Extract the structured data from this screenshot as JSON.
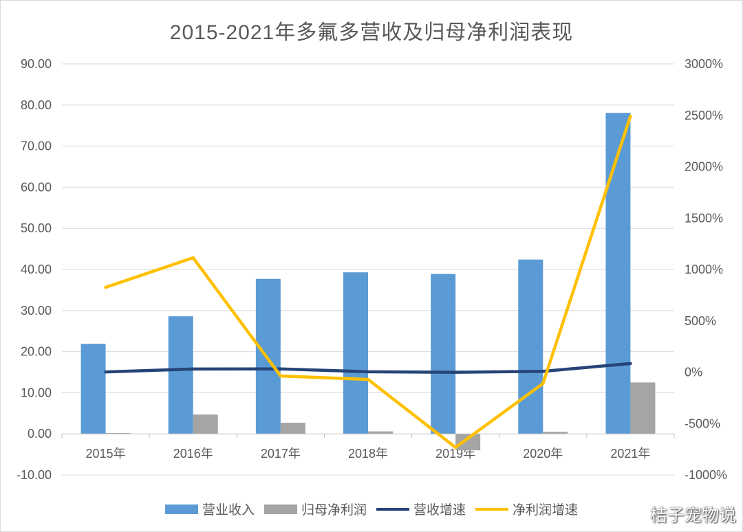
{
  "chart_data": {
    "type": "bar",
    "title": "2015-2021年多氟多营收及归母净利润表现",
    "categories": [
      "2015年",
      "2016年",
      "2017年",
      "2018年",
      "2019年",
      "2020年",
      "2021年"
    ],
    "series": [
      {
        "name": "营业收入",
        "type": "bar",
        "axis": "left",
        "color": "#5B9BD5",
        "values": [
          21.9,
          28.6,
          37.7,
          39.3,
          38.9,
          42.4,
          78.1
        ]
      },
      {
        "name": "归母净利润",
        "type": "bar",
        "axis": "left",
        "color": "#A5A5A5",
        "values": [
          0.2,
          4.7,
          2.7,
          0.6,
          -4.0,
          0.5,
          12.5
        ]
      },
      {
        "name": "营收增速",
        "type": "line",
        "axis": "right",
        "color": "#264478",
        "values": [
          3,
          31,
          32,
          4,
          -1,
          9,
          84
        ]
      },
      {
        "name": "净利润增速",
        "type": "line",
        "axis": "right",
        "color": "#FFC000",
        "values": [
          826,
          1114,
          -37,
          -70,
          -732,
          -110,
          2492
        ]
      }
    ],
    "left_axis": {
      "ylim": [
        -10,
        90
      ],
      "ticks": [
        -10,
        0,
        10,
        20,
        30,
        40,
        50,
        60,
        70,
        80,
        90
      ],
      "tick_labels": [
        "-10.00",
        "0.00",
        "10.00",
        "20.00",
        "30.00",
        "40.00",
        "50.00",
        "60.00",
        "70.00",
        "80.00",
        "90.00"
      ],
      "negative_tick_color": "#FF0000"
    },
    "right_axis": {
      "ylim": [
        -1000,
        3000
      ],
      "ticks": [
        -1000,
        -500,
        0,
        500,
        1000,
        1500,
        2000,
        2500,
        3000
      ],
      "tick_labels": [
        "-1000%",
        "-500%",
        "0%",
        "500%",
        "1000%",
        "1500%",
        "2000%",
        "2500%",
        "3000%"
      ]
    },
    "grid": true,
    "legend": "bottom"
  },
  "watermark": {
    "text": "桔子宠物说",
    "icon": "weibo-icon"
  }
}
